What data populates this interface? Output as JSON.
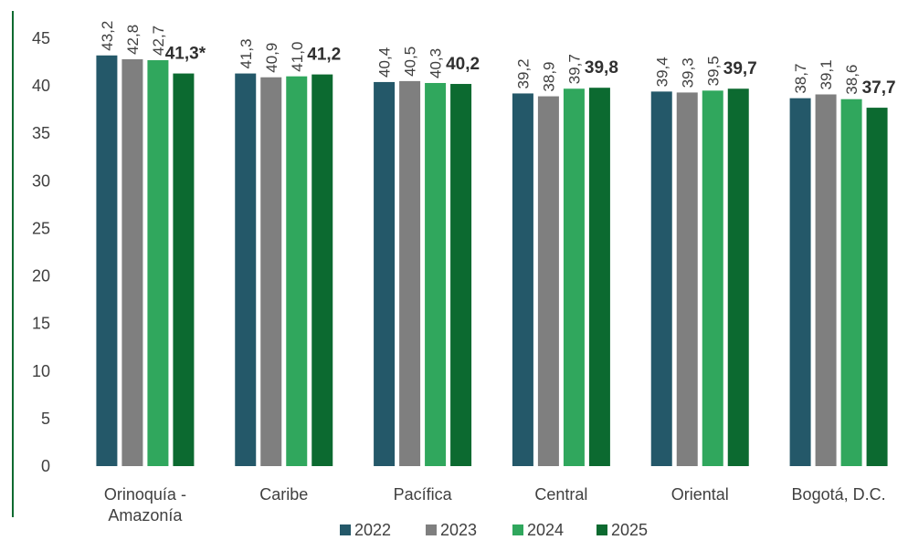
{
  "chart_data": {
    "type": "bar",
    "categories": [
      [
        "Orinoquía -",
        "Amazonía"
      ],
      [
        "Caribe"
      ],
      [
        "Pacífica"
      ],
      [
        "Central"
      ],
      [
        "Oriental"
      ],
      [
        "Bogotá, D.C."
      ]
    ],
    "series": [
      {
        "name": "2022",
        "color": "#245869",
        "values": [
          43.2,
          41.3,
          40.4,
          39.2,
          39.4,
          38.7
        ],
        "labels": [
          "43,2",
          "41,3",
          "40,4",
          "39,2",
          "39,4",
          "38,7"
        ]
      },
      {
        "name": "2023",
        "color": "#7f7f7f",
        "values": [
          42.8,
          40.9,
          40.5,
          38.9,
          39.3,
          39.1
        ],
        "labels": [
          "42,8",
          "40,9",
          "40,5",
          "38,9",
          "39,3",
          "39,1"
        ]
      },
      {
        "name": "2024",
        "color": "#30a75d",
        "values": [
          42.7,
          41.0,
          40.3,
          39.7,
          39.5,
          38.6
        ],
        "labels": [
          "42,7",
          "41,0",
          "40,3",
          "39,7",
          "39,5",
          "38,6"
        ]
      },
      {
        "name": "2025",
        "color": "#0c6a30",
        "values": [
          41.3,
          41.2,
          40.2,
          39.8,
          39.7,
          37.7
        ],
        "labels": [
          "41,3*",
          "41,2",
          "40,2",
          "39,8",
          "39,7",
          "37,7"
        ]
      }
    ],
    "ylim": [
      0,
      45
    ],
    "yticks": [
      0,
      5,
      10,
      15,
      20,
      25,
      30,
      35,
      40,
      45
    ],
    "legend_position": "bottom",
    "grid": false
  }
}
